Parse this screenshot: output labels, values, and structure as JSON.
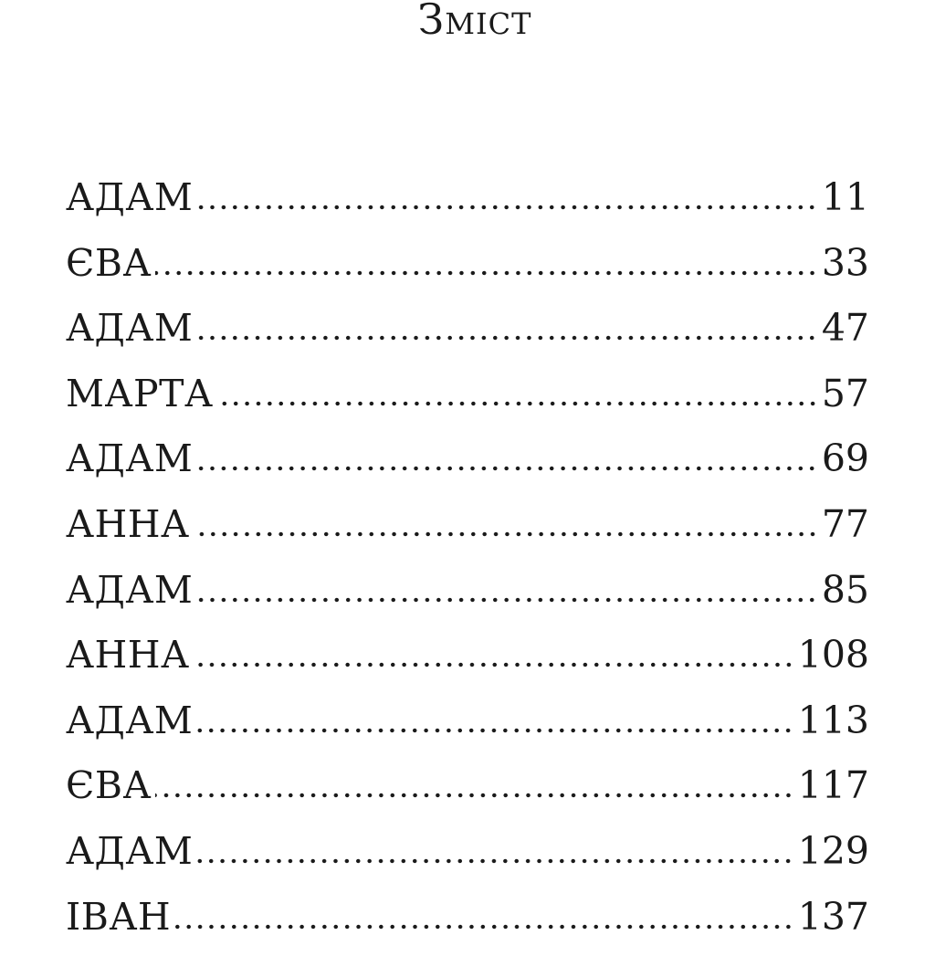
{
  "title": "Зміст",
  "entries": [
    {
      "name": "АДАМ",
      "page": "11"
    },
    {
      "name": "ЄВА",
      "page": "33"
    },
    {
      "name": "АДАМ",
      "page": "47"
    },
    {
      "name": "МАРТА",
      "page": "57"
    },
    {
      "name": "АДАМ",
      "page": "69"
    },
    {
      "name": "АННА",
      "page": "77"
    },
    {
      "name": "АДАМ",
      "page": "85"
    },
    {
      "name": "АННА",
      "page": "108"
    },
    {
      "name": "АДАМ",
      "page": "113"
    },
    {
      "name": "ЄВА",
      "page": "117"
    },
    {
      "name": "АДАМ",
      "page": "129"
    },
    {
      "name": "ІВАН",
      "page": "137"
    }
  ]
}
